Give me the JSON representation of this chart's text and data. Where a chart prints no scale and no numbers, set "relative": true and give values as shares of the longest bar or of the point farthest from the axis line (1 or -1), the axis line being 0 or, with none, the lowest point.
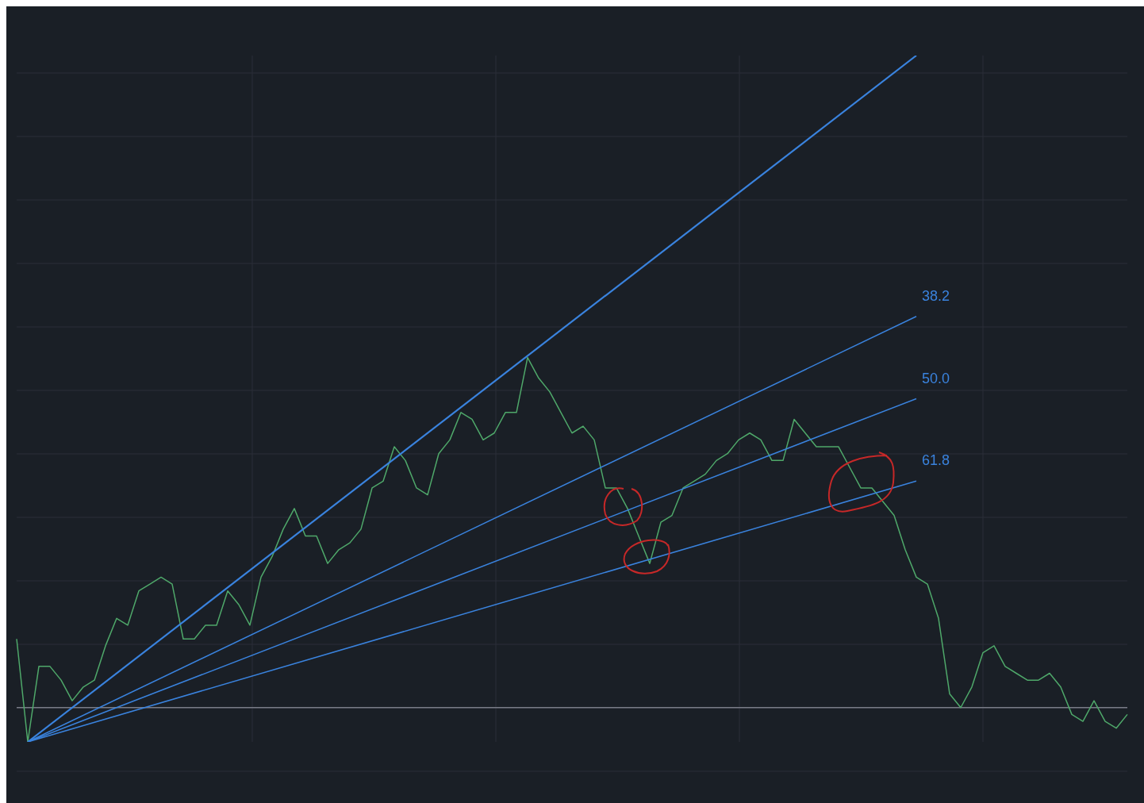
{
  "chart_data": {
    "type": "line",
    "relative": true,
    "grid": true,
    "legend": false,
    "categories": [
      null,
      null,
      null,
      null,
      null,
      null,
      null,
      null,
      null,
      null,
      null,
      null,
      null,
      null,
      null,
      null,
      null,
      null,
      null,
      null,
      null,
      null,
      null,
      null,
      null,
      null,
      null,
      null,
      null,
      null,
      null,
      null,
      null,
      null,
      null,
      null,
      null,
      null,
      null,
      null,
      null,
      null,
      null,
      null,
      null,
      null,
      null,
      null,
      null,
      null,
      null,
      null,
      null,
      null,
      null,
      null,
      null,
      null,
      null,
      null,
      null,
      null,
      null,
      null,
      null,
      null,
      null,
      null,
      null,
      null,
      null,
      null,
      null,
      null,
      null,
      null,
      null,
      null,
      null,
      null,
      null,
      null,
      null,
      null,
      null,
      null,
      null,
      null,
      null,
      null,
      null,
      null,
      null,
      null,
      null,
      null,
      null,
      null,
      null,
      null,
      null
    ],
    "series": [
      {
        "color": "#4fa86a",
        "values": [
          0.15,
          0,
          0.11,
          0.11,
          0.09,
          0.06,
          0.08,
          0.09,
          0.14,
          0.18,
          0.17,
          0.22,
          0.23,
          0.24,
          0.23,
          0.15,
          0.15,
          0.17,
          0.17,
          0.22,
          0.2,
          0.17,
          0.24,
          0.27,
          0.31,
          0.34,
          0.3,
          0.3,
          0.26,
          0.28,
          0.29,
          0.31,
          0.37,
          0.38,
          0.43,
          0.41,
          0.37,
          0.36,
          0.42,
          0.44,
          0.48,
          0.47,
          0.44,
          0.45,
          0.48,
          0.48,
          0.56,
          0.53,
          0.51,
          0.48,
          0.45,
          0.46,
          0.44,
          0.37,
          0.37,
          0.34,
          0.3,
          0.26,
          0.32,
          0.33,
          0.37,
          0.38,
          0.39,
          0.41,
          0.42,
          0.44,
          0.45,
          0.44,
          0.41,
          0.41,
          0.47,
          0.45,
          0.43,
          0.43,
          0.43,
          0.4,
          0.37,
          0.37,
          0.35,
          0.33,
          0.28,
          0.24,
          0.23,
          0.18,
          0.07,
          0.05,
          0.08,
          0.13,
          0.14,
          0.11,
          0.1,
          0.09,
          0.09,
          0.1,
          0.08,
          0.04,
          0.03,
          0.06,
          0.03,
          0.02,
          0.04
        ]
      },
      {
        "color": "#3a83de",
        "values": [
          null,
          0,
          null,
          null,
          null,
          null,
          null,
          null,
          null,
          null,
          null,
          null,
          null,
          null,
          null,
          null,
          null,
          null,
          null,
          null,
          null,
          null,
          null,
          null,
          null,
          null,
          null,
          null,
          null,
          null,
          null,
          null,
          null,
          null,
          null,
          null,
          null,
          null,
          null,
          null,
          null,
          null,
          null,
          null,
          null,
          null,
          null,
          null,
          null,
          null,
          null,
          null,
          null,
          null,
          null,
          null,
          null,
          null,
          null,
          null,
          null,
          null,
          null,
          null,
          null,
          null,
          null,
          null,
          null,
          null,
          null,
          null,
          null,
          null,
          null,
          null,
          null,
          null,
          null,
          null,
          null,
          1,
          null,
          null,
          null,
          null,
          null,
          null,
          null,
          null,
          null,
          null,
          null,
          null,
          null,
          null,
          null,
          null,
          null,
          null,
          null
        ]
      },
      {
        "name": "38.2",
        "color": "#3a83de",
        "values": [
          null,
          0,
          null,
          null,
          null,
          null,
          null,
          null,
          null,
          null,
          null,
          null,
          null,
          null,
          null,
          null,
          null,
          null,
          null,
          null,
          null,
          null,
          null,
          null,
          null,
          null,
          null,
          null,
          null,
          null,
          null,
          null,
          null,
          null,
          null,
          null,
          null,
          null,
          null,
          null,
          null,
          null,
          null,
          null,
          null,
          null,
          null,
          null,
          null,
          null,
          null,
          null,
          null,
          null,
          null,
          null,
          null,
          null,
          null,
          null,
          null,
          null,
          null,
          null,
          null,
          null,
          null,
          null,
          null,
          null,
          null,
          null,
          null,
          null,
          null,
          null,
          null,
          null,
          null,
          null,
          null,
          0.62,
          null,
          null,
          null,
          null,
          null,
          null,
          null,
          null,
          null,
          null,
          null,
          null,
          null,
          null,
          null,
          null,
          null,
          null,
          null
        ]
      },
      {
        "name": "50.0",
        "color": "#3a83de",
        "values": [
          null,
          0,
          null,
          null,
          null,
          null,
          null,
          null,
          null,
          null,
          null,
          null,
          null,
          null,
          null,
          null,
          null,
          null,
          null,
          null,
          null,
          null,
          null,
          null,
          null,
          null,
          null,
          null,
          null,
          null,
          null,
          null,
          null,
          null,
          null,
          null,
          null,
          null,
          null,
          null,
          null,
          null,
          null,
          null,
          null,
          null,
          null,
          null,
          null,
          null,
          null,
          null,
          null,
          null,
          null,
          null,
          null,
          null,
          null,
          null,
          null,
          null,
          null,
          null,
          null,
          null,
          null,
          null,
          null,
          null,
          null,
          null,
          null,
          null,
          null,
          null,
          null,
          null,
          null,
          null,
          null,
          0.5,
          null,
          null,
          null,
          null,
          null,
          null,
          null,
          null,
          null,
          null,
          null,
          null,
          null,
          null,
          null,
          null,
          null,
          null,
          null
        ]
      },
      {
        "name": "61.8",
        "color": "#3a83de",
        "values": [
          null,
          0,
          null,
          null,
          null,
          null,
          null,
          null,
          null,
          null,
          null,
          null,
          null,
          null,
          null,
          null,
          null,
          null,
          null,
          null,
          null,
          null,
          null,
          null,
          null,
          null,
          null,
          null,
          null,
          null,
          null,
          null,
          null,
          null,
          null,
          null,
          null,
          null,
          null,
          null,
          null,
          null,
          null,
          null,
          null,
          null,
          null,
          null,
          null,
          null,
          null,
          null,
          null,
          null,
          null,
          null,
          null,
          null,
          null,
          null,
          null,
          null,
          null,
          null,
          null,
          null,
          null,
          null,
          null,
          null,
          null,
          null,
          null,
          null,
          null,
          null,
          null,
          null,
          null,
          null,
          null,
          0.38,
          null,
          null,
          null,
          null,
          null,
          null,
          null,
          null,
          null,
          null,
          null,
          null,
          null,
          null,
          null,
          null,
          null,
          null,
          null
        ]
      }
    ],
    "ref_lines": [
      {
        "axis": "y",
        "value": 0.05,
        "color": "#787b86"
      }
    ]
  }
}
